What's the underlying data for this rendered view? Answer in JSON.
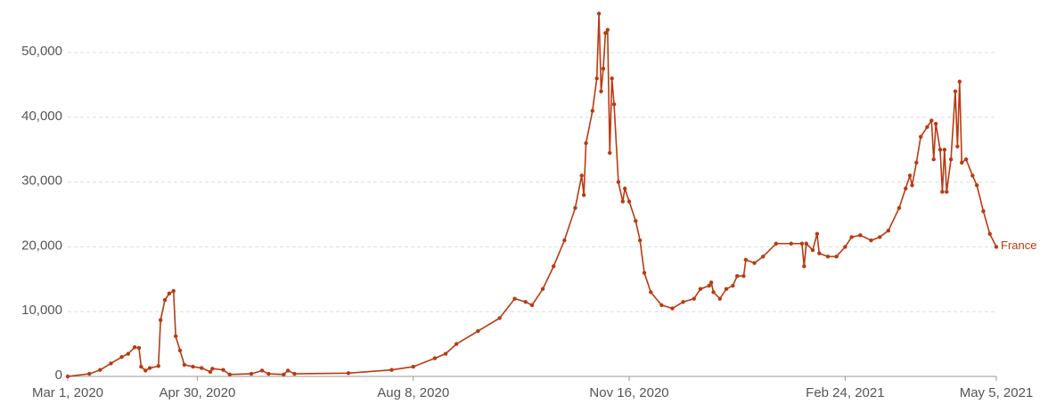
{
  "chart_data": {
    "type": "line",
    "x": [
      "2020-03-01",
      "2020-03-11",
      "2020-03-16",
      "2020-03-21",
      "2020-03-26",
      "2020-03-29",
      "2020-04-01",
      "2020-04-03",
      "2020-04-04",
      "2020-04-06",
      "2020-04-08",
      "2020-04-12",
      "2020-04-13",
      "2020-04-15",
      "2020-04-17",
      "2020-04-19",
      "2020-04-20",
      "2020-04-22",
      "2020-04-24",
      "2020-04-28",
      "2020-05-02",
      "2020-05-06",
      "2020-05-07",
      "2020-05-12",
      "2020-05-15",
      "2020-05-25",
      "2020-05-30",
      "2020-06-02",
      "2020-06-09",
      "2020-06-11",
      "2020-06-14",
      "2020-07-09",
      "2020-07-29",
      "2020-08-08",
      "2020-08-18",
      "2020-08-23",
      "2020-08-28",
      "2020-09-07",
      "2020-09-17",
      "2020-09-24",
      "2020-09-29",
      "2020-10-02",
      "2020-10-07",
      "2020-10-12",
      "2020-10-17",
      "2020-10-22",
      "2020-10-25",
      "2020-10-26",
      "2020-10-27",
      "2020-10-30",
      "2020-11-01",
      "2020-11-02",
      "2020-11-03",
      "2020-11-04",
      "2020-11-05",
      "2020-11-06",
      "2020-11-07",
      "2020-11-08",
      "2020-11-09",
      "2020-11-11",
      "2020-11-13",
      "2020-11-14",
      "2020-11-16",
      "2020-11-19",
      "2020-11-21",
      "2020-11-23",
      "2020-11-26",
      "2020-12-01",
      "2020-12-06",
      "2020-12-11",
      "2020-12-16",
      "2020-12-19",
      "2020-12-23",
      "2020-12-24",
      "2020-12-25",
      "2020-12-28",
      "2020-12-31",
      "2021-01-03",
      "2021-01-05",
      "2021-01-08",
      "2021-01-09",
      "2021-01-13",
      "2021-01-17",
      "2021-01-23",
      "2021-01-30",
      "2021-02-04",
      "2021-02-05",
      "2021-02-06",
      "2021-02-09",
      "2021-02-11",
      "2021-02-12",
      "2021-02-16",
      "2021-02-20",
      "2021-02-24",
      "2021-02-27",
      "2021-03-03",
      "2021-03-08",
      "2021-03-12",
      "2021-03-16",
      "2021-03-21",
      "2021-03-24",
      "2021-03-26",
      "2021-03-27",
      "2021-03-29",
      "2021-03-31",
      "2021-04-03",
      "2021-04-05",
      "2021-04-06",
      "2021-04-07",
      "2021-04-09",
      "2021-04-10",
      "2021-04-11",
      "2021-04-12",
      "2021-04-14",
      "2021-04-16",
      "2021-04-17",
      "2021-04-18",
      "2021-04-19",
      "2021-04-21",
      "2021-04-24",
      "2021-04-26",
      "2021-04-29",
      "2021-05-02",
      "2021-05-05"
    ],
    "series": [
      {
        "name": "France",
        "color": "#b83b12",
        "values": [
          0,
          400,
          1000,
          2000,
          3000,
          3500,
          4500,
          4400,
          1500,
          900,
          1300,
          1600,
          8700,
          11800,
          12800,
          13200,
          6200,
          4000,
          1800,
          1500,
          1300,
          700,
          1200,
          1000,
          300,
          400,
          900,
          400,
          300,
          900,
          400,
          500,
          1000,
          1500,
          2800,
          3500,
          5000,
          7000,
          9000,
          12000,
          11500,
          11000,
          13500,
          17000,
          21000,
          26000,
          31000,
          28000,
          36000,
          41000,
          46000,
          56000,
          44000,
          47500,
          53000,
          53500,
          34500,
          46000,
          42000,
          30000,
          27000,
          29000,
          27000,
          24000,
          21000,
          16000,
          13000,
          11000,
          10500,
          11500,
          12000,
          13500,
          14000,
          14500,
          13000,
          12000,
          13500,
          14000,
          15500,
          15500,
          18000,
          17500,
          18500,
          20500,
          20500,
          20500,
          17000,
          20500,
          19500,
          22000,
          19000,
          18500,
          18500,
          20000,
          21500,
          21800,
          21000,
          21500,
          22500,
          26000,
          29000,
          31000,
          29500,
          33000,
          37000,
          38500,
          39500,
          33500,
          39000,
          35000,
          28500,
          35000,
          28500,
          33500,
          44000,
          35500,
          45500,
          33000,
          33500,
          31000,
          29500,
          25500,
          22000,
          20000
        ]
      }
    ],
    "xlim": [
      "2020-03-01",
      "2021-05-05"
    ],
    "xticks": [
      {
        "value": "2020-03-01",
        "label": "Mar 1, 2020"
      },
      {
        "value": "2020-04-30",
        "label": "Apr 30, 2020"
      },
      {
        "value": "2020-08-08",
        "label": "Aug 8, 2020"
      },
      {
        "value": "2020-11-16",
        "label": "Nov 16, 2020"
      },
      {
        "value": "2021-02-24",
        "label": "Feb 24, 2021"
      },
      {
        "value": "2021-05-05",
        "label": "May 5, 2021"
      }
    ],
    "ylim": [
      0,
      50000
    ],
    "yticks": [
      0,
      {
        "value": 10000,
        "label": "10,000"
      },
      {
        "value": 20000,
        "label": "20,000"
      },
      {
        "value": 30000,
        "label": "30,000"
      },
      {
        "value": 40000,
        "label": "40,000"
      },
      {
        "value": 50000,
        "label": "50,000"
      }
    ],
    "grid": true
  }
}
